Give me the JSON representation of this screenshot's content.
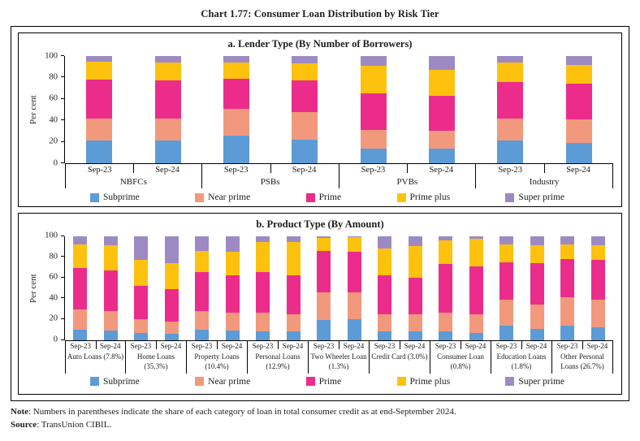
{
  "title": "Chart 1.77: Consumer Loan Distribution by Risk Tier",
  "footer": {
    "note_label": "Note",
    "note_text": ": Numbers in parentheses indicate the share of each category of loan in total consumer credit as at end-September 2024.",
    "source_label": "Source",
    "source_text": ": TransUnion CIBIL."
  },
  "series": [
    {
      "name": "Subprime",
      "color": "#5C9BD5"
    },
    {
      "name": "Near prime",
      "color": "#F2997D"
    },
    {
      "name": "Prime",
      "color": "#EC2C8B"
    },
    {
      "name": "Prime plus",
      "color": "#FEC20E"
    },
    {
      "name": "Super prime",
      "color": "#9D8AC3"
    }
  ],
  "chart_data": [
    {
      "type": "bar",
      "stacked": true,
      "title": "a. Lender Type (By Number of  Borrowers)",
      "ylabel": "Per cent",
      "ylim": [
        0,
        100
      ],
      "yticks": [
        0,
        20,
        40,
        60,
        80,
        100
      ],
      "grid": false,
      "legend_position": "bottom",
      "series_order_bottom_to_top": [
        "Subprime",
        "Near prime",
        "Prime",
        "Prime plus",
        "Super prime"
      ],
      "groups": [
        {
          "label": "NBFCs",
          "bars": [
            {
              "label": "Sep-23",
              "values": [
                21,
                21,
                36,
                17,
                5
              ]
            },
            {
              "label": "Sep-24",
              "values": [
                21,
                21,
                35,
                17,
                6
              ]
            }
          ]
        },
        {
          "label": "PSBs",
          "bars": [
            {
              "label": "Sep-23",
              "values": [
                26,
                25,
                28,
                15,
                6
              ]
            },
            {
              "label": "Sep-24",
              "values": [
                22,
                26,
                29,
                16,
                7
              ]
            }
          ]
        },
        {
          "label": "PVBs",
          "bars": [
            {
              "label": "Sep-23",
              "values": [
                14,
                17,
                34,
                26,
                9
              ]
            },
            {
              "label": "Sep-24",
              "values": [
                14,
                16,
                33,
                24,
                13
              ]
            }
          ]
        },
        {
          "label": "Industry",
          "bars": [
            {
              "label": "Sep-23",
              "values": [
                21,
                21,
                34,
                18,
                6
              ]
            },
            {
              "label": "Sep-24",
              "values": [
                19,
                22,
                33,
                18,
                8
              ]
            }
          ]
        }
      ]
    },
    {
      "type": "bar",
      "stacked": true,
      "title": "b. Product Type (By Amount)",
      "ylabel": "Per cent",
      "ylim": [
        0,
        100
      ],
      "yticks": [
        0,
        20,
        40,
        60,
        80,
        100
      ],
      "grid": false,
      "legend_position": "bottom",
      "series_order_bottom_to_top": [
        "Subprime",
        "Near prime",
        "Prime",
        "Prime plus",
        "Super prime"
      ],
      "groups": [
        {
          "label": "Auto Loans",
          "share": "(7.8%)",
          "bars": [
            {
              "label": "Sep-23",
              "values": [
                10,
                19,
                40,
                23,
                8
              ]
            },
            {
              "label": "Sep-24",
              "values": [
                9,
                19,
                39,
                24,
                9
              ]
            }
          ]
        },
        {
          "label": "Home Loans",
          "share": "(35.3%)",
          "bars": [
            {
              "label": "Sep-23",
              "values": [
                7,
                13,
                32,
                25,
                23
              ]
            },
            {
              "label": "Sep-24",
              "values": [
                6,
                12,
                31,
                25,
                26
              ]
            }
          ]
        },
        {
          "label": "Property Loans",
          "share": "(10.4%)",
          "bars": [
            {
              "label": "Sep-23",
              "values": [
                10,
                18,
                37,
                21,
                14
              ]
            },
            {
              "label": "Sep-24",
              "values": [
                9,
                17,
                36,
                23,
                15
              ]
            }
          ]
        },
        {
          "label": "Personal Loans",
          "share": "(12.9%)",
          "bars": [
            {
              "label": "Sep-23",
              "values": [
                8,
                18,
                39,
                29,
                6
              ]
            },
            {
              "label": "Sep-24",
              "values": [
                8,
                17,
                37,
                32,
                6
              ]
            }
          ]
        },
        {
          "label": "Two Wheeler Loan",
          "share": "(1.3%)",
          "bars": [
            {
              "label": "Sep-23",
              "values": [
                19,
                27,
                40,
                12,
                2
              ]
            },
            {
              "label": "Sep-24",
              "values": [
                20,
                26,
                39,
                14,
                1
              ]
            }
          ]
        },
        {
          "label": "Credit Card",
          "share": "(3.0%)",
          "bars": [
            {
              "label": "Sep-23",
              "values": [
                8,
                17,
                37,
                26,
                12
              ]
            },
            {
              "label": "Sep-24",
              "values": [
                8,
                17,
                35,
                30,
                10
              ]
            }
          ]
        },
        {
          "label": "Consumer Loan",
          "share": "(0.8%)",
          "bars": [
            {
              "label": "Sep-23",
              "values": [
                8,
                18,
                47,
                23,
                4
              ]
            },
            {
              "label": "Sep-24",
              "values": [
                7,
                18,
                46,
                26,
                3
              ]
            }
          ]
        },
        {
          "label": "Education Loans",
          "share": "(1.8%)",
          "bars": [
            {
              "label": "Sep-23",
              "values": [
                14,
                25,
                36,
                17,
                8
              ]
            },
            {
              "label": "Sep-24",
              "values": [
                11,
                23,
                40,
                17,
                9
              ]
            }
          ]
        },
        {
          "label": "Other Personal Loans",
          "share": "(26.7%)",
          "bars": [
            {
              "label": "Sep-23",
              "values": [
                14,
                27,
                37,
                14,
                8
              ]
            },
            {
              "label": "Sep-24",
              "values": [
                12,
                27,
                38,
                14,
                9
              ]
            }
          ]
        }
      ]
    }
  ]
}
